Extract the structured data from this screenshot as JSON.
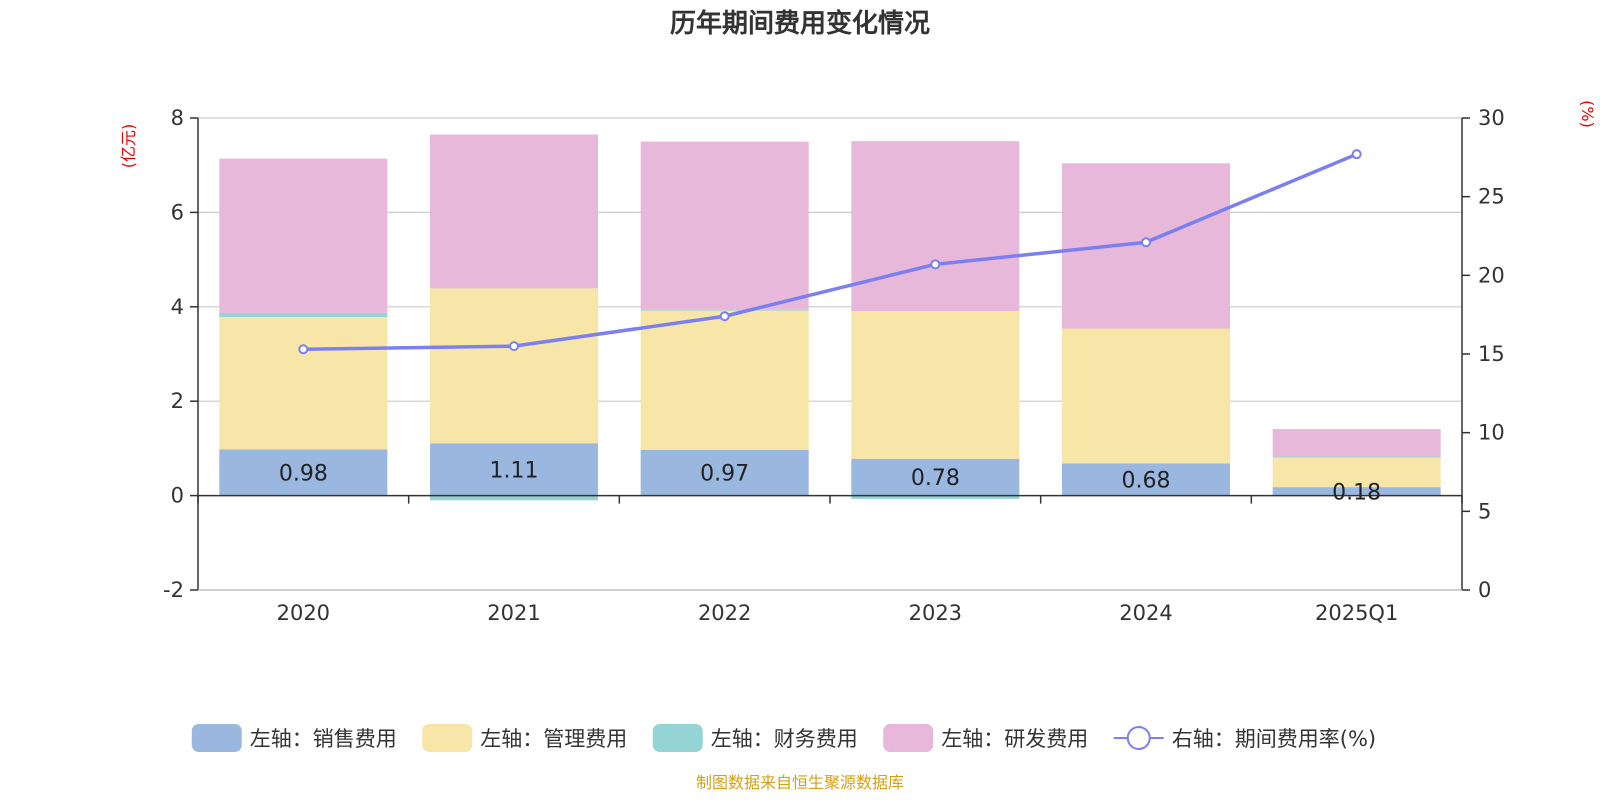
{
  "chart_data": {
    "type": "bar",
    "title": "历年期间费用变化情况",
    "left_unit": "(亿元)",
    "right_unit": "(%)",
    "categories": [
      "2020",
      "2021",
      "2022",
      "2023",
      "2024",
      "2025Q1"
    ],
    "left_ylim": [
      -2,
      8
    ],
    "left_ticks": [
      "8",
      "6",
      "4",
      "2",
      "0",
      "-2"
    ],
    "right_ylim": [
      0,
      30
    ],
    "right_ticks": [
      "30",
      "25",
      "20",
      "15",
      "10",
      "5",
      "0"
    ],
    "grid": true,
    "legend_position": "bottom",
    "series": [
      {
        "name": "左轴：销售费用",
        "color": "#9ab7e0",
        "values": [
          0.98,
          1.11,
          0.97,
          0.78,
          0.68,
          0.18
        ],
        "labels": [
          "0.98",
          "1.11",
          "0.97",
          "0.78",
          "0.68",
          "0.18"
        ]
      },
      {
        "name": "左轴：管理费用",
        "color": "#f7e6a8",
        "values": [
          2.8,
          3.28,
          2.95,
          3.13,
          2.86,
          0.63
        ]
      },
      {
        "name": "左轴：财务费用",
        "color": "#95d4d4",
        "values": [
          0.09,
          -0.1,
          0.02,
          -0.07,
          0.0,
          0.02
        ]
      },
      {
        "name": "左轴：研发费用",
        "color": "#e7b8da",
        "values": [
          3.27,
          3.26,
          3.56,
          3.6,
          3.5,
          0.58
        ]
      }
    ],
    "line": {
      "name": "右轴：期间费用率(%)",
      "color": "#7b7ff0",
      "values": [
        15.3,
        15.5,
        17.4,
        20.7,
        22.1,
        27.7
      ]
    },
    "source": "制图数据来自恒生聚源数据库"
  }
}
